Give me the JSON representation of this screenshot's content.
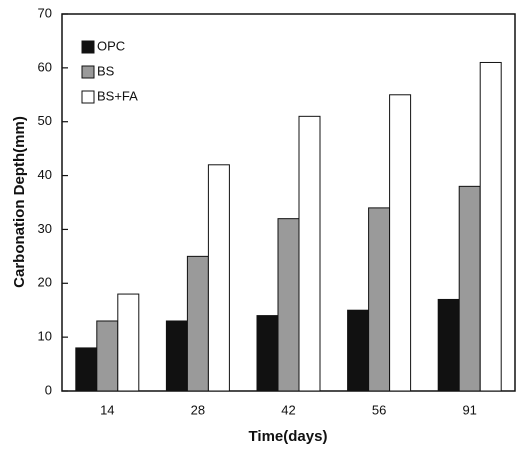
{
  "chart_data": {
    "type": "bar",
    "x_label": "Time(days)",
    "y_label": "Carbonation Depth(mm)",
    "categories": [
      "14",
      "28",
      "42",
      "56",
      "91"
    ],
    "series": [
      {
        "name": "OPC",
        "color": "#111111",
        "values": [
          8,
          13,
          14,
          15,
          17
        ]
      },
      {
        "name": "BS",
        "color": "#9a9a9a",
        "values": [
          13,
          25,
          32,
          34,
          38
        ]
      },
      {
        "name": "BS+FA",
        "color": "#ffffff",
        "values": [
          18,
          42,
          51,
          55,
          61
        ]
      }
    ],
    "ylim": [
      0,
      70
    ],
    "yticks": [
      0,
      10,
      20,
      30,
      40,
      50,
      60,
      70
    ],
    "legend": "upper-left"
  }
}
